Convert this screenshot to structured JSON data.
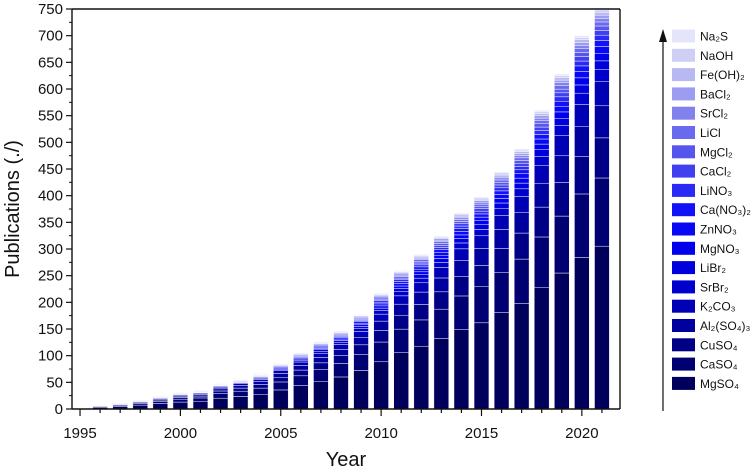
{
  "chart_data": {
    "type": "bar",
    "stacked": true,
    "title": "",
    "xlabel": "Year",
    "ylabel": "Publications (./)",
    "xlim": [
      1994.6,
      2021.9
    ],
    "ylim": [
      0,
      750
    ],
    "x_ticks": [
      "1995",
      "2000",
      "2005",
      "2010",
      "2015",
      "2020"
    ],
    "y_ticks": [
      "0",
      "50",
      "100",
      "150",
      "200",
      "250",
      "300",
      "350",
      "400",
      "450",
      "500",
      "550",
      "600",
      "650",
      "700",
      "750"
    ],
    "years": [
      1996,
      1997,
      1998,
      1999,
      2000,
      2001,
      2002,
      2003,
      2004,
      2005,
      2006,
      2007,
      2008,
      2009,
      2010,
      2011,
      2012,
      2013,
      2014,
      2015,
      2016,
      2017,
      2018,
      2019,
      2020,
      2021
    ],
    "totals": [
      8,
      12,
      18,
      25,
      32,
      36,
      50,
      58,
      68,
      88,
      108,
      128,
      148,
      178,
      218,
      260,
      290,
      325,
      368,
      398,
      445,
      488,
      560,
      628,
      700,
      752
    ],
    "grid": false,
    "legend_position": "right",
    "legend_entries": [
      "Na₂S",
      "NaOH",
      "Fe(OH)₂",
      "BaCl₂",
      "SrCl₂",
      "LiCl",
      "MgCl₂",
      "CaCl₂",
      "LiNO₃",
      "Ca(NO₃)₂",
      "ZnNO₃",
      "MgNO₃",
      "LiBr₂",
      "SrBr₂",
      "K₂CO₃",
      "Al₂(SO₄)₃",
      "CuSO₄",
      "CaSO₄",
      "MgSO₄"
    ],
    "legend_colors": [
      "#E4E4FA",
      "#CFCFF6",
      "#B8B8F3",
      "#9C9CF0",
      "#8282EE",
      "#6A6AEE",
      "#5656EE",
      "#4040F0",
      "#2A2AF4",
      "#1212F8",
      "#0808F4",
      "#0000EC",
      "#0000DC",
      "#0000CC",
      "#0000B4",
      "#00009E",
      "#000086",
      "#000072",
      "#00005C"
    ],
    "shares": [
      0.005,
      0.006,
      0.007,
      0.008,
      0.009,
      0.01,
      0.011,
      0.012,
      0.013,
      0.015,
      0.017,
      0.019,
      0.022,
      0.03,
      0.06,
      0.08,
      0.1,
      0.17,
      0.406
    ],
    "legend_arrow": true
  }
}
